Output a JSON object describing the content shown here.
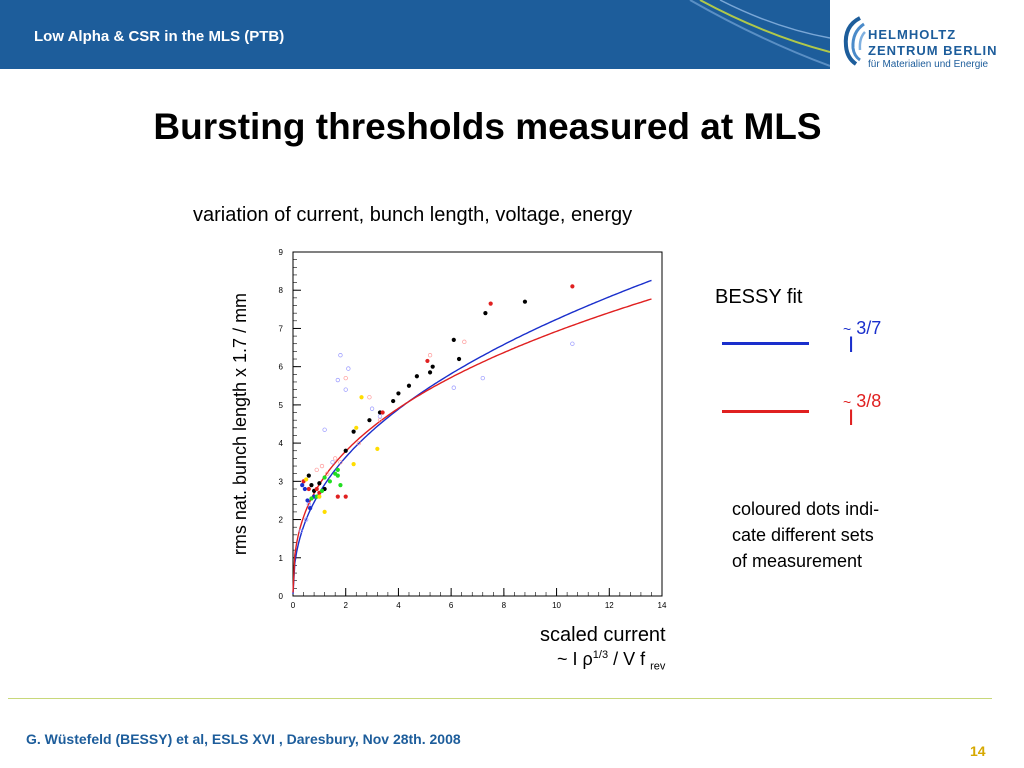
{
  "header": {
    "title": "Low Alpha & CSR in the MLS (PTB)",
    "logo": {
      "line1": "HELMHOLTZ",
      "line2": "ZENTRUM BERLIN",
      "line3": "für Materialien und Energie",
      "icon": "helmholtz-logo-icon"
    }
  },
  "slide": {
    "title": "Bursting thresholds measured at MLS",
    "subtitle": "variation of current, bunch length, voltage, energy",
    "x_label": "scaled current",
    "x_formula": {
      "prefix": "~ I ",
      "rho": "ρ",
      "exp": "1/3",
      "mid": " / V f ",
      "sub": "rev"
    },
    "bessy_fit": "BESSY fit",
    "legend": [
      {
        "tilde": "~",
        "symbol": "I",
        "exponent": "3/7",
        "color": "#1a2fcc"
      },
      {
        "tilde": "~",
        "symbol": "I",
        "exponent": "3/8",
        "color": "#e02020"
      }
    ],
    "note": [
      "coloured dots indi-",
      "cate different sets",
      "of measurement"
    ],
    "footer": "G. Wüstefeld (BESSY) et al,  ESLS XVI  , Daresbury, Nov 28th. 2008",
    "page_number": "14"
  },
  "chart_data": {
    "type": "scatter",
    "ylabel": "rms nat. bunch length x 1.7 / mm",
    "xlim": [
      0,
      14
    ],
    "ylim": [
      0,
      9
    ],
    "x_ticks": [
      "0",
      "2",
      "4",
      "6",
      "8",
      "10",
      "12",
      "14"
    ],
    "y_ticks": [
      "0",
      "1",
      "2",
      "3",
      "4",
      "5",
      "6",
      "7",
      "8",
      "9"
    ],
    "series": [
      {
        "color": "#000000",
        "points": [
          [
            0.6,
            3.15
          ],
          [
            0.7,
            2.9
          ],
          [
            0.8,
            2.75
          ],
          [
            1.0,
            2.95
          ],
          [
            1.2,
            2.8
          ],
          [
            2.0,
            3.8
          ],
          [
            2.3,
            4.3
          ],
          [
            2.9,
            4.6
          ],
          [
            3.3,
            4.8
          ],
          [
            3.8,
            5.1
          ],
          [
            4.0,
            5.3
          ],
          [
            4.4,
            5.5
          ],
          [
            4.7,
            5.75
          ],
          [
            5.3,
            6.0
          ],
          [
            5.2,
            5.85
          ],
          [
            6.1,
            6.7
          ],
          [
            6.3,
            6.2
          ],
          [
            7.3,
            7.4
          ],
          [
            8.8,
            7.7
          ]
        ]
      },
      {
        "color": "#e02020",
        "points": [
          [
            0.4,
            3.0
          ],
          [
            0.6,
            2.8
          ],
          [
            0.9,
            2.8
          ],
          [
            1.0,
            2.7
          ],
          [
            1.7,
            2.6
          ],
          [
            2.0,
            2.6
          ],
          [
            3.4,
            4.8
          ],
          [
            5.1,
            6.15
          ],
          [
            7.5,
            7.65
          ],
          [
            10.6,
            8.1
          ]
        ]
      },
      {
        "color": "#1a2fcc",
        "points": [
          [
            0.35,
            2.9
          ],
          [
            0.45,
            2.8
          ],
          [
            0.55,
            2.5
          ],
          [
            0.65,
            2.3
          ],
          [
            0.8,
            2.6
          ]
        ]
      },
      {
        "color": "#22dd22",
        "points": [
          [
            0.7,
            2.55
          ],
          [
            0.9,
            2.6
          ],
          [
            1.1,
            2.75
          ],
          [
            1.4,
            3.0
          ],
          [
            1.6,
            3.2
          ],
          [
            1.7,
            3.3
          ],
          [
            1.8,
            2.9
          ],
          [
            1.7,
            3.15
          ],
          [
            1.2,
            3.1
          ]
        ]
      },
      {
        "color": "#ffdd00",
        "points": [
          [
            0.5,
            3.05
          ],
          [
            1.0,
            2.6
          ],
          [
            1.2,
            2.2
          ],
          [
            2.3,
            3.45
          ],
          [
            2.4,
            4.4
          ],
          [
            2.6,
            5.2
          ],
          [
            3.2,
            3.85
          ]
        ]
      },
      {
        "color": "#ff9999",
        "hollow": true,
        "points": [
          [
            0.9,
            3.3
          ],
          [
            1.1,
            3.4
          ],
          [
            1.3,
            3.2
          ],
          [
            1.6,
            3.6
          ],
          [
            1.8,
            3.5
          ],
          [
            2.0,
            5.7
          ],
          [
            2.5,
            4.0
          ],
          [
            2.9,
            5.2
          ],
          [
            3.3,
            4.6
          ],
          [
            5.2,
            6.3
          ],
          [
            6.5,
            6.65
          ]
        ]
      },
      {
        "color": "#9999ff",
        "hollow": true,
        "points": [
          [
            0.3,
            1.7
          ],
          [
            0.5,
            2.0
          ],
          [
            0.6,
            2.4
          ],
          [
            1.2,
            4.35
          ],
          [
            1.5,
            3.5
          ],
          [
            1.7,
            5.65
          ],
          [
            1.8,
            6.3
          ],
          [
            2.0,
            5.4
          ],
          [
            2.1,
            5.95
          ],
          [
            3.0,
            4.9
          ],
          [
            3.3,
            4.7
          ],
          [
            6.1,
            5.45
          ],
          [
            7.2,
            5.7
          ],
          [
            10.6,
            6.6
          ]
        ]
      }
    ],
    "curves": [
      {
        "name": "~ I^3/7",
        "color": "#1a2fcc",
        "coef": 2.698,
        "exp": 0.4286
      },
      {
        "name": "~ I^3/8",
        "color": "#e02020",
        "coef": 2.92,
        "exp": 0.375
      }
    ]
  }
}
